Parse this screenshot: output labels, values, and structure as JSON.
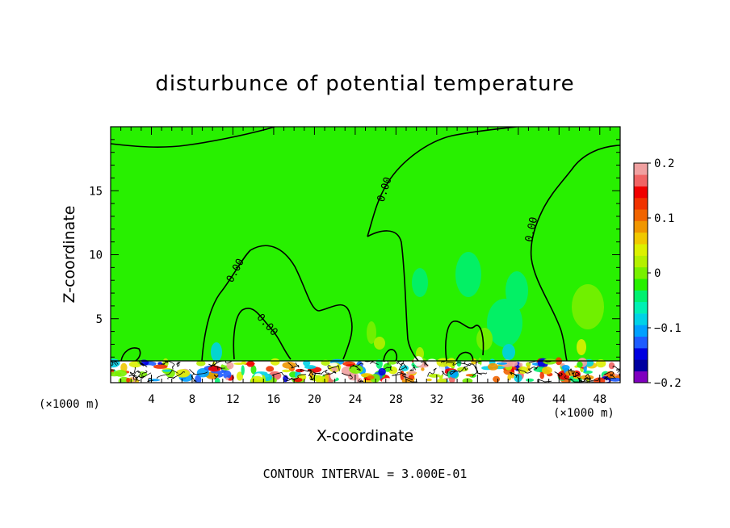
{
  "chart_data": {
    "type": "heatmap",
    "title": "disturbunce of potential temperature",
    "xlabel": "X-coordinate",
    "ylabel": "Z-coordinate",
    "x_unit": "(×1000 m)",
    "y_unit": "(×1000 m)",
    "xlim": [
      0,
      50
    ],
    "ylim": [
      0,
      20
    ],
    "x_ticks": [
      4,
      8,
      12,
      16,
      20,
      24,
      28,
      32,
      36,
      40,
      44,
      48
    ],
    "y_ticks": [
      5,
      10,
      15
    ],
    "colorbar": {
      "min": -0.2,
      "max": 0.2,
      "tick_values": [
        0.2,
        0.1,
        0,
        -0.1,
        -0.2
      ],
      "tick_labels": [
        "0.2",
        "0.1",
        "0",
        "−0.1",
        "−0.2"
      ],
      "colors": [
        "#7f00bf",
        "#0000a0",
        "#0000e0",
        "#1e5cff",
        "#00a0ff",
        "#00d2e6",
        "#00f0b4",
        "#00f070",
        "#28f000",
        "#78f000",
        "#b4f000",
        "#dcf000",
        "#f0c800",
        "#f09600",
        "#f06400",
        "#f03200",
        "#f00000",
        "#f06464",
        "#f0a0a0"
      ]
    },
    "zero_contour_labels": [
      "0.00",
      "0.00",
      "0.00",
      "0.00"
    ],
    "contour_interval_text": "CONTOUR INTERVAL = 3.000E-01",
    "background_value": 0.0
  }
}
